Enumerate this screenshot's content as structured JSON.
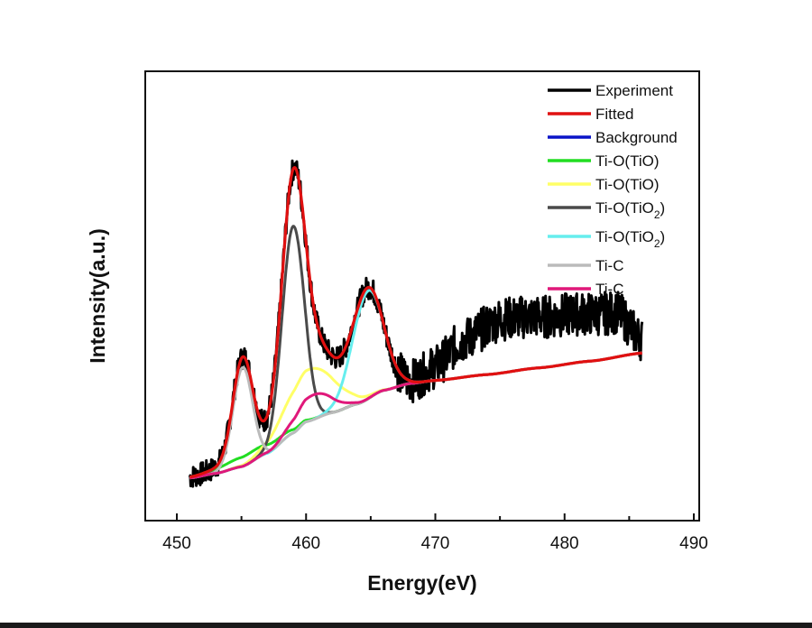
{
  "chart_data": {
    "type": "line",
    "title": "",
    "xlabel": "Energy(eV)",
    "ylabel": "Intensity(a.u.)",
    "xlim": [
      447.5,
      490
    ],
    "ylim": [
      0,
      100
    ],
    "x_ticks": [
      450,
      460,
      470,
      480,
      490
    ],
    "x_minor_ticks": [
      455,
      465,
      475,
      485
    ],
    "y_ticks": [],
    "grid": false,
    "legend_position": "top-right",
    "x_range_data": [
      451,
      486
    ],
    "background": {
      "name": "Background",
      "color": "#0a14c8",
      "points": [
        [
          451,
          9.5
        ],
        [
          453,
          10.5
        ],
        [
          455,
          12
        ],
        [
          457,
          15
        ],
        [
          459,
          19.5
        ],
        [
          460,
          22
        ],
        [
          462,
          24
        ],
        [
          464,
          26
        ],
        [
          466,
          29
        ],
        [
          468,
          30.5
        ],
        [
          470,
          31.2
        ],
        [
          474,
          32.5
        ],
        [
          478,
          34
        ],
        [
          482,
          35.5
        ],
        [
          486,
          37.3
        ]
      ]
    },
    "components": [
      {
        "name": "Ti-O(TiO)",
        "color": "#22dd22",
        "center": 455.8,
        "height": 2.2,
        "width": 2.2
      },
      {
        "name": "Ti-O(TiO)",
        "color": "#ffff66",
        "center": 460.3,
        "height": 11.5,
        "width": 1.9
      },
      {
        "name": "Ti-O(TiO2)",
        "color": "#4a4a4a",
        "center": 459.0,
        "height": 46,
        "width": 0.85
      },
      {
        "name": "Ti-O(TiO2)",
        "color": "#66eeee",
        "center": 464.8,
        "height": 24,
        "width": 1.2
      },
      {
        "name": "Ti-C",
        "color": "#bbbbbb",
        "center": 455.1,
        "height": 22,
        "width": 0.75
      },
      {
        "name": "Ti-C",
        "color": "#e0187a",
        "center": 460.6,
        "height": 5.5,
        "width": 1.4
      }
    ],
    "fitted": {
      "name": "Fitted",
      "color": "#e01010"
    },
    "experiment": {
      "name": "Experiment",
      "color": "#000000",
      "noise_amplitude": 2.2,
      "extra_signal": [
        [
          468,
          0
        ],
        [
          470,
          3
        ],
        [
          472,
          8
        ],
        [
          475,
          12
        ],
        [
          480,
          11
        ],
        [
          484,
          10
        ],
        [
          486,
          3
        ]
      ]
    },
    "legend": [
      {
        "label": "Experiment",
        "color": "#000000"
      },
      {
        "label": "Fitted",
        "color": "#e01010"
      },
      {
        "label": "Background",
        "color": "#0a14c8"
      },
      {
        "label": "Ti-O(TiO)",
        "color": "#22dd22"
      },
      {
        "label": "Ti-O(TiO)",
        "color": "#ffff66"
      },
      {
        "label": "Ti-O(TiO",
        "sub": "2",
        "tail": ")",
        "color": "#4a4a4a"
      },
      {
        "label": "Ti-O(TiO",
        "sub": "2",
        "tail": ")",
        "color": "#66eeee"
      },
      {
        "label": "Ti-C",
        "color": "#bbbbbb"
      },
      {
        "label": "Ti-C",
        "color": "#e0187a"
      }
    ]
  }
}
